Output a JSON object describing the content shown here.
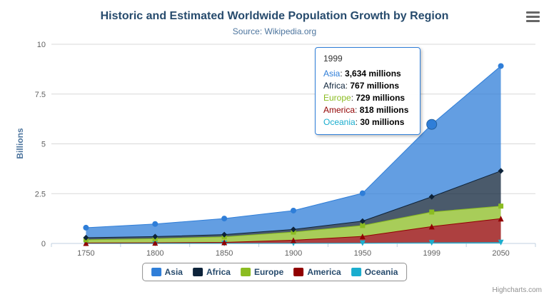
{
  "chart_data": {
    "type": "area",
    "stacking": "normal",
    "title": "Historic and Estimated Worldwide Population Growth by Region",
    "subtitle": "Source: Wikipedia.org",
    "ylabel": "Billions",
    "unit": "millions",
    "ylim": [
      0,
      10
    ],
    "yticks": [
      "0",
      "2.5",
      "5",
      "7.5",
      "10"
    ],
    "categories": [
      "1750",
      "1800",
      "1850",
      "1900",
      "1950",
      "1999",
      "2050"
    ],
    "grid": true,
    "legend_position": "bottom",
    "stack_order_bottom_to_top": [
      "Oceania",
      "America",
      "Europe",
      "Africa",
      "Asia"
    ],
    "hover_point": {
      "series": "Asia",
      "category": "1999"
    },
    "series": [
      {
        "name": "Asia",
        "color": "#2f7ed8",
        "marker": "circle",
        "values": [
          502,
          635,
          809,
          947,
          1402,
          3634,
          5268
        ]
      },
      {
        "name": "Africa",
        "color": "#0d233a",
        "marker": "diamond",
        "values": [
          106,
          107,
          111,
          133,
          221,
          767,
          1766
        ]
      },
      {
        "name": "Europe",
        "color": "#8bbc21",
        "marker": "square",
        "values": [
          163,
          203,
          276,
          408,
          547,
          729,
          628
        ]
      },
      {
        "name": "America",
        "color": "#910000",
        "marker": "triangle",
        "values": [
          18,
          31,
          54,
          156,
          339,
          818,
          1201
        ]
      },
      {
        "name": "Oceania",
        "color": "#1aadce",
        "marker": "triangle-down",
        "values": [
          2,
          2,
          2,
          6,
          13,
          30,
          46
        ]
      }
    ]
  },
  "tooltip": {
    "header": "1999",
    "rows": [
      {
        "name": "Asia",
        "color": "#2f7ed8",
        "value": "3,634 millions"
      },
      {
        "name": "Africa",
        "color": "#0d233a",
        "value": "767 millions"
      },
      {
        "name": "Europe",
        "color": "#8bbc21",
        "value": "729 millions"
      },
      {
        "name": "America",
        "color": "#910000",
        "value": "818 millions"
      },
      {
        "name": "Oceania",
        "color": "#1aadce",
        "value": "30 millions"
      }
    ]
  },
  "credits": "Highcharts.com",
  "icons": {
    "menu": "hamburger-menu-icon"
  },
  "colors": {
    "title": "#274b6d",
    "subtitle": "#4d759e",
    "axis_label": "#606060",
    "grid": "#d8d8d8",
    "axis_line": "#c0d0e0",
    "legend_border": "#909090",
    "legend_text": "#274b6d",
    "fill_opacity": 0.75
  }
}
